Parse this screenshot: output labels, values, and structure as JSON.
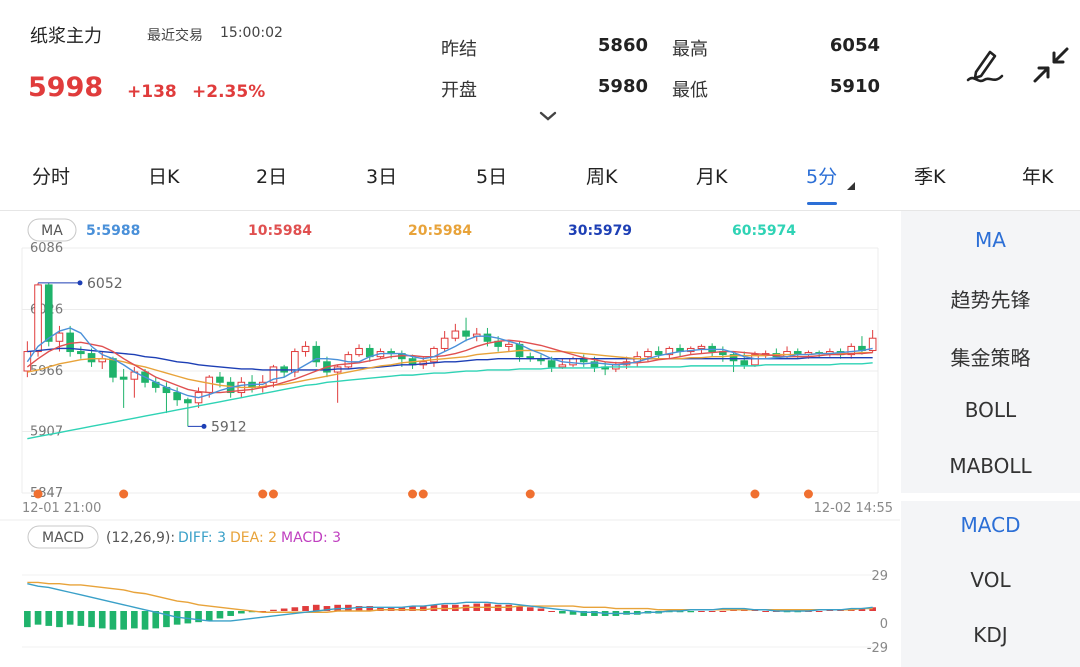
{
  "header": {
    "name": "纸浆主力",
    "recent_label": "最近交易",
    "recent_time": "15:00:02",
    "price": "5998",
    "change": "+138",
    "change_pct": "+2.35%",
    "quotes": [
      {
        "label": "昨结",
        "value": "5860"
      },
      {
        "label": "最高",
        "value": "6054"
      },
      {
        "label": "开盘",
        "value": "5980"
      },
      {
        "label": "最低",
        "value": "5910"
      }
    ],
    "icons": {
      "expand": "chevron-down-icon",
      "draw": "drawing-pen-icon",
      "collapse": "collapse-arrows-icon"
    }
  },
  "tabs": [
    "分时",
    "日K",
    "2日",
    "3日",
    "5日",
    "周K",
    "月K",
    "5分",
    "季K",
    "年K"
  ],
  "active_tab": "5分",
  "side_main": [
    "MA",
    "趋势先锋",
    "集金策略",
    "BOLL",
    "MABOLL"
  ],
  "side_sub": [
    "MACD",
    "VOL",
    "KDJ"
  ],
  "colors": {
    "up": "#e03c3c",
    "down": "#1fb36b",
    "accent": "#2c6fd6",
    "ma5": "#4a90d9",
    "ma10": "#e05050",
    "ma20": "#e8a33a",
    "ma30": "#1d3fb5",
    "ma60": "#2fd3b5",
    "diff": "#3aa0c8",
    "dea": "#e8a33a",
    "macd": "#c040c0",
    "signal_dot": "#f07030"
  },
  "chart_data": [
    {
      "type": "candlestick",
      "indicator_badge": "MA",
      "legend": [
        {
          "name": "5",
          "value": "5988"
        },
        {
          "name": "10",
          "value": "5984"
        },
        {
          "name": "20",
          "value": "5984"
        },
        {
          "name": "30",
          "value": "5979"
        },
        {
          "name": "60",
          "value": "5974"
        }
      ],
      "y_ticks": [
        "6086",
        "6026",
        "5966",
        "5907",
        "5847"
      ],
      "ylim": [
        5847,
        6086
      ],
      "x_labels": [
        "12-01 21:00",
        "12-02 14:55"
      ],
      "high_marker": "6052",
      "low_marker": "5912",
      "candles": [
        [
          5966,
          5985,
          5960,
          5995
        ],
        [
          5985,
          6050,
          5980,
          6052
        ],
        [
          6050,
          5995,
          5990,
          6052
        ],
        [
          5995,
          6003,
          5985,
          6010
        ],
        [
          6003,
          5985,
          5980,
          6010
        ],
        [
          5985,
          5983,
          5978,
          5990
        ],
        [
          5983,
          5975,
          5970,
          5988
        ],
        [
          5975,
          5978,
          5968,
          5985
        ],
        [
          5978,
          5960,
          5955,
          5980
        ],
        [
          5960,
          5958,
          5930,
          5968
        ],
        [
          5958,
          5965,
          5940,
          5970
        ],
        [
          5965,
          5955,
          5950,
          5968
        ],
        [
          5955,
          5950,
          5945,
          5960
        ],
        [
          5950,
          5945,
          5925,
          5955
        ],
        [
          5945,
          5938,
          5932,
          5950
        ],
        [
          5938,
          5935,
          5912,
          5940
        ],
        [
          5935,
          5945,
          5930,
          5950
        ],
        [
          5945,
          5960,
          5940,
          5962
        ],
        [
          5960,
          5955,
          5950,
          5965
        ],
        [
          5955,
          5945,
          5940,
          5960
        ],
        [
          5945,
          5955,
          5940,
          5960
        ],
        [
          5955,
          5950,
          5945,
          5962
        ],
        [
          5950,
          5955,
          5945,
          5962
        ],
        [
          5955,
          5970,
          5950,
          5972
        ],
        [
          5970,
          5965,
          5960,
          5972
        ],
        [
          5965,
          5985,
          5960,
          5988
        ],
        [
          5985,
          5990,
          5980,
          5995
        ],
        [
          5990,
          5975,
          5970,
          5995
        ],
        [
          5975,
          5965,
          5960,
          5980
        ],
        [
          5965,
          5970,
          5935,
          5972
        ],
        [
          5970,
          5982,
          5968,
          5985
        ],
        [
          5982,
          5988,
          5980,
          5992
        ],
        [
          5988,
          5980,
          5975,
          5992
        ],
        [
          5980,
          5985,
          5978,
          5988
        ],
        [
          5985,
          5983,
          5978,
          5988
        ],
        [
          5983,
          5978,
          5970,
          5986
        ],
        [
          5978,
          5972,
          5968,
          5982
        ],
        [
          5972,
          5975,
          5968,
          5980
        ],
        [
          5975,
          5988,
          5970,
          5990
        ],
        [
          5988,
          5998,
          5985,
          6005
        ],
        [
          5998,
          6005,
          5995,
          6012
        ],
        [
          6005,
          6000,
          5995,
          6018
        ],
        [
          6000,
          6002,
          5995,
          6008
        ],
        [
          6002,
          5995,
          5990,
          6008
        ],
        [
          5995,
          5990,
          5985,
          6000
        ],
        [
          5990,
          5992,
          5985,
          5996
        ],
        [
          5992,
          5980,
          5975,
          5995
        ],
        [
          5980,
          5978,
          5975,
          5984
        ],
        [
          5978,
          5976,
          5972,
          5982
        ],
        [
          5976,
          5970,
          5965,
          5980
        ],
        [
          5970,
          5972,
          5968,
          5978
        ],
        [
          5972,
          5978,
          5970,
          5980
        ],
        [
          5978,
          5975,
          5970,
          5982
        ],
        [
          5975,
          5970,
          5965,
          5980
        ],
        [
          5970,
          5968,
          5962,
          5975
        ],
        [
          5968,
          5972,
          5965,
          5975
        ],
        [
          5972,
          5975,
          5968,
          5980
        ],
        [
          5975,
          5980,
          5970,
          5985
        ],
        [
          5980,
          5985,
          5975,
          5988
        ],
        [
          5985,
          5982,
          5978,
          5990
        ],
        [
          5982,
          5988,
          5978,
          5990
        ],
        [
          5988,
          5985,
          5980,
          5992
        ],
        [
          5985,
          5988,
          5982,
          5990
        ],
        [
          5988,
          5990,
          5983,
          5992
        ],
        [
          5990,
          5985,
          5980,
          5993
        ],
        [
          5985,
          5982,
          5975,
          5990
        ],
        [
          5982,
          5976,
          5965,
          5985
        ],
        [
          5976,
          5972,
          5968,
          5985
        ],
        [
          5972,
          5982,
          5970,
          5985
        ],
        [
          5982,
          5983,
          5978,
          5986
        ],
        [
          5983,
          5980,
          5978,
          5988
        ],
        [
          5980,
          5985,
          5978,
          5990
        ],
        [
          5985,
          5982,
          5978,
          5988
        ],
        [
          5982,
          5984,
          5978,
          5986
        ],
        [
          5984,
          5983,
          5979,
          5986
        ],
        [
          5983,
          5985,
          5980,
          5988
        ],
        [
          5985,
          5982,
          5978,
          5988
        ],
        [
          5982,
          5990,
          5978,
          5993
        ],
        [
          5990,
          5986,
          5982,
          6000
        ],
        [
          5986,
          5998,
          5984,
          6006
        ]
      ],
      "ma5": [
        5975,
        5990,
        5998,
        6005,
        6008,
        6003,
        5990,
        5982,
        5978,
        5972,
        5965,
        5960,
        5955,
        5950,
        5946,
        5942,
        5940,
        5943,
        5947,
        5950,
        5952,
        5953,
        5953,
        5958,
        5960,
        5966,
        5972,
        5978,
        5978,
        5977,
        5975,
        5975,
        5980,
        5983,
        5983,
        5983,
        5980,
        5978,
        5980,
        5985,
        5990,
        5996,
        6000,
        6000,
        5998,
        5995,
        5992,
        5987,
        5983,
        5978,
        5975,
        5974,
        5973,
        5974,
        5973,
        5972,
        5973,
        5975,
        5978,
        5981,
        5983,
        5985,
        5986,
        5987,
        5987,
        5987,
        5984,
        5980,
        5978,
        5978,
        5979,
        5980,
        5982,
        5982,
        5983,
        5983,
        5984,
        5985,
        5986,
        5988
      ],
      "ma10": [
        5970,
        5978,
        5985,
        5990,
        5993,
        5994,
        5992,
        5990,
        5985,
        5978,
        5972,
        5966,
        5960,
        5956,
        5952,
        5948,
        5946,
        5945,
        5945,
        5946,
        5947,
        5948,
        5950,
        5952,
        5955,
        5958,
        5962,
        5966,
        5970,
        5972,
        5973,
        5974,
        5976,
        5978,
        5980,
        5981,
        5981,
        5980,
        5980,
        5981,
        5983,
        5986,
        5990,
        5993,
        5995,
        5996,
        5995,
        5993,
        5991,
        5988,
        5985,
        5982,
        5979,
        5977,
        5975,
        5974,
        5974,
        5974,
        5975,
        5977,
        5978,
        5980,
        5982,
        5983,
        5984,
        5985,
        5985,
        5984,
        5983,
        5982,
        5981,
        5980,
        5980,
        5980,
        5981,
        5982,
        5982,
        5983,
        5983,
        5984
      ],
      "ma20": [
        5965,
        5967,
        5970,
        5973,
        5975,
        5977,
        5978,
        5978,
        5977,
        5975,
        5972,
        5970,
        5967,
        5964,
        5961,
        5958,
        5956,
        5954,
        5952,
        5951,
        5950,
        5950,
        5951,
        5952,
        5953,
        5955,
        5957,
        5959,
        5961,
        5963,
        5965,
        5967,
        5969,
        5971,
        5972,
        5974,
        5975,
        5976,
        5977,
        5978,
        5979,
        5980,
        5982,
        5983,
        5984,
        5985,
        5986,
        5986,
        5986,
        5985,
        5985,
        5984,
        5983,
        5982,
        5981,
        5980,
        5979,
        5978,
        5978,
        5978,
        5978,
        5978,
        5979,
        5979,
        5980,
        5980,
        5981,
        5981,
        5981,
        5981,
        5982,
        5982,
        5982,
        5982,
        5983,
        5983,
        5983,
        5983,
        5984,
        5984
      ],
      "ma30": [
        5985,
        5986,
        5987,
        5988,
        5988,
        5987,
        5986,
        5985,
        5984,
        5983,
        5982,
        5980,
        5979,
        5977,
        5975,
        5974,
        5972,
        5971,
        5970,
        5969,
        5968,
        5968,
        5967,
        5967,
        5967,
        5967,
        5967,
        5967,
        5967,
        5968,
        5968,
        5969,
        5969,
        5970,
        5971,
        5972,
        5972,
        5973,
        5974,
        5975,
        5975,
        5976,
        5977,
        5977,
        5978,
        5978,
        5978,
        5978,
        5978,
        5978,
        5978,
        5978,
        5978,
        5978,
        5978,
        5978,
        5978,
        5978,
        5978,
        5978,
        5978,
        5978,
        5978,
        5978,
        5978,
        5978,
        5978,
        5978,
        5978,
        5978,
        5978,
        5978,
        5978,
        5979,
        5979,
        5979,
        5979,
        5979,
        5979,
        5979
      ],
      "ma60": [
        5900,
        5902,
        5904,
        5906,
        5908,
        5910,
        5912,
        5914,
        5916,
        5918,
        5920,
        5922,
        5924,
        5926,
        5928,
        5930,
        5932,
        5934,
        5936,
        5938,
        5940,
        5942,
        5944,
        5946,
        5948,
        5950,
        5952,
        5953,
        5955,
        5956,
        5957,
        5958,
        5959,
        5960,
        5961,
        5962,
        5962,
        5963,
        5964,
        5964,
        5965,
        5966,
        5966,
        5967,
        5967,
        5967,
        5968,
        5968,
        5968,
        5969,
        5969,
        5969,
        5969,
        5969,
        5970,
        5970,
        5970,
        5970,
        5970,
        5970,
        5970,
        5970,
        5971,
        5971,
        5971,
        5971,
        5971,
        5971,
        5971,
        5972,
        5972,
        5972,
        5972,
        5972,
        5972,
        5972,
        5973,
        5973,
        5973,
        5974
      ],
      "signal_dots": [
        1,
        9,
        22,
        23,
        36,
        37,
        47,
        68,
        73
      ]
    },
    {
      "type": "bar",
      "indicator_badge": "MACD",
      "params": "(12,26,9):",
      "legend": [
        {
          "name": "DIFF",
          "value": "3"
        },
        {
          "name": "DEA",
          "value": "2"
        },
        {
          "name": "MACD",
          "value": "3"
        }
      ],
      "y_ticks": [
        "29",
        "0",
        "-29"
      ],
      "ylim": [
        -29,
        29
      ],
      "macd": [
        -13,
        -11,
        -12,
        -13,
        -11,
        -12,
        -13,
        -14,
        -15,
        -15,
        -14,
        -15,
        -14,
        -13,
        -11,
        -10,
        -9,
        -8,
        -6,
        -4,
        -2,
        -1,
        0,
        1,
        2,
        3,
        4,
        5,
        4,
        5,
        5,
        4,
        4,
        3,
        3,
        3,
        4,
        4,
        5,
        5,
        5,
        5,
        6,
        6,
        5,
        5,
        4,
        3,
        2,
        0,
        -2,
        -3,
        -4,
        -4,
        -4,
        -4,
        -3,
        -3,
        -2,
        -2,
        -1,
        -1,
        -1,
        0,
        0,
        0,
        1,
        1,
        1,
        0,
        0,
        -1,
        -1,
        0,
        0,
        1,
        1,
        1,
        2,
        3
      ],
      "diff": [
        22,
        20,
        19,
        17,
        15,
        13,
        11,
        9,
        7,
        5,
        3,
        1,
        -1,
        -3,
        -5,
        -6,
        -7,
        -8,
        -8,
        -8,
        -7,
        -6,
        -5,
        -4,
        -3,
        -2,
        -1,
        0,
        1,
        2,
        2,
        3,
        3,
        3,
        3,
        3,
        4,
        4,
        5,
        6,
        6,
        7,
        7,
        7,
        6,
        6,
        5,
        4,
        3,
        2,
        1,
        0,
        -1,
        -1,
        -2,
        -2,
        -2,
        -2,
        -1,
        -1,
        0,
        0,
        1,
        1,
        1,
        2,
        2,
        2,
        1,
        1,
        0,
        0,
        0,
        0,
        1,
        1,
        1,
        2,
        2,
        3
      ],
      "dea": [
        23,
        23,
        22,
        22,
        21,
        21,
        20,
        19,
        18,
        17,
        15,
        14,
        12,
        10,
        8,
        7,
        5,
        4,
        3,
        2,
        1,
        0,
        -1,
        -1,
        -1,
        -1,
        -1,
        -1,
        -1,
        0,
        0,
        0,
        0,
        1,
        1,
        1,
        1,
        1,
        2,
        2,
        2,
        3,
        3,
        3,
        3,
        3,
        4,
        4,
        4,
        4,
        4,
        4,
        3,
        3,
        3,
        2,
        2,
        2,
        2,
        1,
        1,
        1,
        1,
        1,
        1,
        1,
        1,
        1,
        1,
        1,
        1,
        1,
        1,
        1,
        1,
        1,
        1,
        1,
        2,
        2
      ]
    }
  ]
}
